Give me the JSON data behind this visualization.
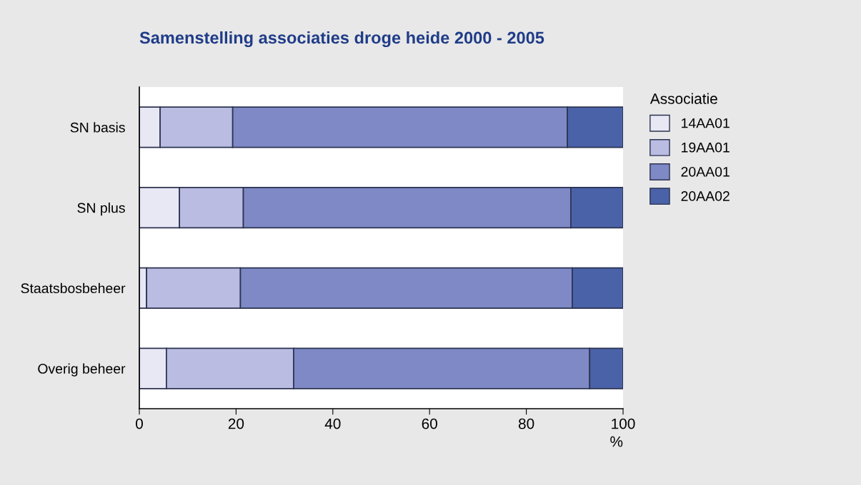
{
  "chart_data": {
    "type": "bar",
    "orientation": "horizontal",
    "stacked": true,
    "title": "Samenstelling associaties droge heide 2000 - 2005",
    "xlabel": "%",
    "legend_title": "Associatie",
    "legend": "top right",
    "categories": [
      "SN basis",
      "SN plus",
      "Staatsbosbeheer",
      "Overig beheer"
    ],
    "series": [
      {
        "name": "14AA01",
        "color": "#e8e8f5",
        "values": [
          4.3,
          8.3,
          1.5,
          5.6
        ]
      },
      {
        "name": "19AA01",
        "color": "#babce2",
        "values": [
          15.0,
          13.2,
          19.4,
          26.3
        ]
      },
      {
        "name": "20AA01",
        "color": "#7e89c6",
        "values": [
          69.2,
          67.7,
          68.6,
          61.2
        ]
      },
      {
        "name": "20AA02",
        "color": "#4a62a8",
        "values": [
          11.5,
          10.8,
          10.5,
          6.9
        ]
      }
    ],
    "xlim": [
      0,
      100
    ],
    "xticks": [
      0,
      20,
      40,
      60,
      80,
      100
    ],
    "grid": false
  }
}
